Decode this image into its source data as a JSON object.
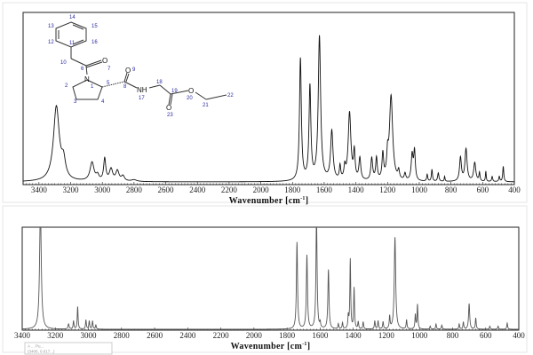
{
  "chart_data": [
    {
      "type": "line",
      "panel": "top",
      "xlabel": "Wavenumber [cm",
      "xlabel_sup": "-1",
      "xlabel_end": "]",
      "xlim": [
        3500,
        400
      ],
      "ylim": [
        0,
        1
      ],
      "xticks": [
        3400,
        3200,
        3000,
        2800,
        2600,
        2400,
        2200,
        2000,
        1800,
        1600,
        1400,
        1200,
        1000,
        800,
        600,
        400
      ],
      "grid": false,
      "line_color": "#111111",
      "peaks": [
        {
          "x": 3290,
          "y": 0.44,
          "w": 22
        },
        {
          "x": 3245,
          "y": 0.1,
          "w": 15
        },
        {
          "x": 3065,
          "y": 0.11,
          "w": 15
        },
        {
          "x": 3030,
          "y": 0.03,
          "w": 10
        },
        {
          "x": 2985,
          "y": 0.13,
          "w": 8
        },
        {
          "x": 2945,
          "y": 0.07,
          "w": 12
        },
        {
          "x": 2905,
          "y": 0.06,
          "w": 12
        },
        {
          "x": 2870,
          "y": 0.03,
          "w": 12
        },
        {
          "x": 2800,
          "y": 0.01,
          "w": 20
        },
        {
          "x": 1750,
          "y": 0.72,
          "w": 7
        },
        {
          "x": 1690,
          "y": 0.55,
          "w": 7
        },
        {
          "x": 1630,
          "y": 0.85,
          "w": 9
        },
        {
          "x": 1552,
          "y": 0.29,
          "w": 9
        },
        {
          "x": 1500,
          "y": 0.08,
          "w": 5
        },
        {
          "x": 1470,
          "y": 0.07,
          "w": 6
        },
        {
          "x": 1440,
          "y": 0.4,
          "w": 10
        },
        {
          "x": 1410,
          "y": 0.16,
          "w": 6
        },
        {
          "x": 1375,
          "y": 0.13,
          "w": 7
        },
        {
          "x": 1300,
          "y": 0.13,
          "w": 7
        },
        {
          "x": 1270,
          "y": 0.13,
          "w": 6
        },
        {
          "x": 1230,
          "y": 0.15,
          "w": 6
        },
        {
          "x": 1200,
          "y": 0.12,
          "w": 6
        },
        {
          "x": 1178,
          "y": 0.5,
          "w": 12
        },
        {
          "x": 1130,
          "y": 0.05,
          "w": 6
        },
        {
          "x": 1090,
          "y": 0.04,
          "w": 6
        },
        {
          "x": 1045,
          "y": 0.15,
          "w": 7
        },
        {
          "x": 1030,
          "y": 0.17,
          "w": 6
        },
        {
          "x": 950,
          "y": 0.04,
          "w": 4
        },
        {
          "x": 920,
          "y": 0.07,
          "w": 4
        },
        {
          "x": 880,
          "y": 0.05,
          "w": 5
        },
        {
          "x": 840,
          "y": 0.03,
          "w": 3
        },
        {
          "x": 740,
          "y": 0.14,
          "w": 7
        },
        {
          "x": 705,
          "y": 0.19,
          "w": 8
        },
        {
          "x": 650,
          "y": 0.11,
          "w": 8
        },
        {
          "x": 620,
          "y": 0.05,
          "w": 4
        },
        {
          "x": 580,
          "y": 0.06,
          "w": 3
        },
        {
          "x": 540,
          "y": 0.03,
          "w": 4
        },
        {
          "x": 495,
          "y": 0.03,
          "w": 4
        },
        {
          "x": 470,
          "y": 0.09,
          "w": 4
        }
      ],
      "inset_structure": {
        "element_labels": [
          "N",
          "O",
          "O",
          "NH",
          "O",
          "O"
        ],
        "atom_numbers": [
          "1",
          "2",
          "3",
          "4",
          "5",
          "6",
          "7",
          "8",
          "9",
          "10",
          "11",
          "12",
          "13",
          "14",
          "15",
          "16",
          "17",
          "18",
          "19",
          "20",
          "21",
          "22",
          "23"
        ]
      }
    },
    {
      "type": "line",
      "panel": "bottom",
      "xlabel": "Wavenumber [cm",
      "xlabel_sup": "-1",
      "xlabel_end": "]",
      "xlim": [
        3400,
        400
      ],
      "ylim": [
        0,
        1
      ],
      "xticks": [
        3400,
        3200,
        3000,
        2800,
        2600,
        2400,
        2200,
        2000,
        1800,
        1600,
        1400,
        1200,
        1000,
        800,
        600,
        400
      ],
      "grid": false,
      "line_color": "#555555",
      "peaks": [
        {
          "x": 3290,
          "y": 1.2,
          "w": 6
        },
        {
          "x": 3120,
          "y": 0.05,
          "w": 4
        },
        {
          "x": 3090,
          "y": 0.08,
          "w": 3
        },
        {
          "x": 3065,
          "y": 0.22,
          "w": 3
        },
        {
          "x": 3015,
          "y": 0.09,
          "w": 3
        },
        {
          "x": 2995,
          "y": 0.08,
          "w": 3
        },
        {
          "x": 2975,
          "y": 0.08,
          "w": 3
        },
        {
          "x": 2955,
          "y": 0.04,
          "w": 3
        },
        {
          "x": 1740,
          "y": 0.85,
          "w": 4
        },
        {
          "x": 1680,
          "y": 0.72,
          "w": 4
        },
        {
          "x": 1622,
          "y": 1.1,
          "w": 4
        },
        {
          "x": 1600,
          "y": 0.05,
          "w": 3
        },
        {
          "x": 1550,
          "y": 0.58,
          "w": 4
        },
        {
          "x": 1490,
          "y": 0.05,
          "w": 3
        },
        {
          "x": 1465,
          "y": 0.06,
          "w": 3
        },
        {
          "x": 1430,
          "y": 0.12,
          "w": 3
        },
        {
          "x": 1418,
          "y": 0.68,
          "w": 3
        },
        {
          "x": 1395,
          "y": 0.4,
          "w": 3
        },
        {
          "x": 1370,
          "y": 0.07,
          "w": 3
        },
        {
          "x": 1340,
          "y": 0.07,
          "w": 3
        },
        {
          "x": 1270,
          "y": 0.08,
          "w": 3
        },
        {
          "x": 1250,
          "y": 0.08,
          "w": 3
        },
        {
          "x": 1220,
          "y": 0.07,
          "w": 3
        },
        {
          "x": 1180,
          "y": 0.12,
          "w": 3
        },
        {
          "x": 1148,
          "y": 0.9,
          "w": 5
        },
        {
          "x": 1078,
          "y": 0.09,
          "w": 3
        },
        {
          "x": 1025,
          "y": 0.14,
          "w": 3
        },
        {
          "x": 1012,
          "y": 0.24,
          "w": 3
        },
        {
          "x": 935,
          "y": 0.03,
          "w": 3
        },
        {
          "x": 900,
          "y": 0.05,
          "w": 3
        },
        {
          "x": 865,
          "y": 0.04,
          "w": 3
        },
        {
          "x": 760,
          "y": 0.05,
          "w": 3
        },
        {
          "x": 735,
          "y": 0.07,
          "w": 3
        },
        {
          "x": 700,
          "y": 0.25,
          "w": 4
        },
        {
          "x": 660,
          "y": 0.11,
          "w": 3
        },
        {
          "x": 575,
          "y": 0.03,
          "w": 3
        },
        {
          "x": 525,
          "y": 0.03,
          "w": 3
        },
        {
          "x": 470,
          "y": 0.06,
          "w": 3
        }
      ],
      "tooltip_fragment": [
        "A ... Pu...",
        "(3406, 0.017...)"
      ]
    }
  ]
}
